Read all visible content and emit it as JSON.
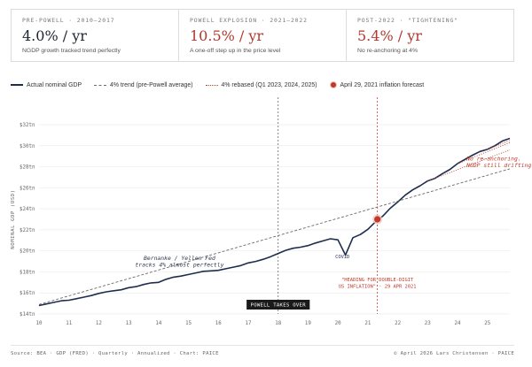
{
  "cards": [
    {
      "label": "PRE-POWELL · 2010–2017",
      "value": "4.0% / yr",
      "note": "NGDP growth tracked trend perfectly",
      "color": "#1f2530"
    },
    {
      "label": "POWELL EXPLOSION · 2021–2022",
      "value": "10.5% / yr",
      "note": "A one-off step up in the price level",
      "color": "#b03a2e"
    },
    {
      "label": "POST-2022 · \"TIGHTENING\"",
      "value": "5.4% / yr",
      "note": "No re-anchoring at 4%",
      "color": "#b03a2e"
    }
  ],
  "legend": {
    "actual": "Actual nominal GDP",
    "trend": "4% trend (pre-Powell average)",
    "rebased": "4% rebased (Q1 2023, 2024, 2025)",
    "forecast": "April 29, 2021 inflation forecast"
  },
  "footer": {
    "left": "Source: BEA · GDP (FRED) · Quarterly · Annualized · Chart: PAICE",
    "right": "© April 2026 Lars Christensen · PAICE"
  },
  "chart_data": {
    "type": "line",
    "title": "",
    "xlabel": "",
    "ylabel": "NOMINAL GDP (USD)",
    "xlim": [
      2010,
      2025.75
    ],
    "ylim": [
      14,
      32
    ],
    "x_ticks": [
      10,
      11,
      12,
      13,
      14,
      15,
      16,
      17,
      18,
      19,
      20,
      21,
      22,
      23,
      24,
      25
    ],
    "y_ticks": [
      {
        "value": 14,
        "label": "$14tn"
      },
      {
        "value": 16,
        "label": "$16tn"
      },
      {
        "value": 18,
        "label": "$18tn"
      },
      {
        "value": 20,
        "label": "$20tn"
      },
      {
        "value": 22,
        "label": "$22tn"
      },
      {
        "value": 24,
        "label": "$24tn"
      },
      {
        "value": 26,
        "label": "$26tn"
      },
      {
        "value": 28,
        "label": "$28tn"
      },
      {
        "value": 30,
        "label": "$30tn"
      },
      {
        "value": 32,
        "label": "$32tn"
      }
    ],
    "series": [
      {
        "name": "Actual nominal GDP",
        "color": "#1f2d4d",
        "style": "solid",
        "x": [
          2010.0,
          2010.25,
          2010.5,
          2010.75,
          2011.0,
          2011.25,
          2011.5,
          2011.75,
          2012.0,
          2012.25,
          2012.5,
          2012.75,
          2013.0,
          2013.25,
          2013.5,
          2013.75,
          2014.0,
          2014.25,
          2014.5,
          2014.75,
          2015.0,
          2015.25,
          2015.5,
          2015.75,
          2016.0,
          2016.25,
          2016.5,
          2016.75,
          2017.0,
          2017.25,
          2017.5,
          2017.75,
          2018.0,
          2018.25,
          2018.5,
          2018.75,
          2019.0,
          2019.25,
          2019.5,
          2019.75,
          2020.0,
          2020.25,
          2020.5,
          2020.75,
          2021.0,
          2021.25,
          2021.5,
          2021.75,
          2022.0,
          2022.25,
          2022.5,
          2022.75,
          2023.0,
          2023.25,
          2023.5,
          2023.75,
          2024.0,
          2024.25,
          2024.5,
          2024.75,
          2025.0,
          2025.25,
          2025.5,
          2025.75
        ],
        "values": [
          14.8,
          14.95,
          15.1,
          15.25,
          15.3,
          15.45,
          15.6,
          15.75,
          15.95,
          16.1,
          16.2,
          16.3,
          16.5,
          16.6,
          16.8,
          16.95,
          17.0,
          17.3,
          17.5,
          17.6,
          17.75,
          17.9,
          18.05,
          18.1,
          18.15,
          18.3,
          18.45,
          18.6,
          18.85,
          19.0,
          19.2,
          19.45,
          19.75,
          20.05,
          20.25,
          20.35,
          20.5,
          20.75,
          20.95,
          21.15,
          21.05,
          19.6,
          21.25,
          21.55,
          22.05,
          22.75,
          23.3,
          24.05,
          24.65,
          25.3,
          25.8,
          26.2,
          26.65,
          26.9,
          27.35,
          27.75,
          28.3,
          28.7,
          29.1,
          29.45,
          29.65,
          30.0,
          30.45,
          30.7
        ]
      },
      {
        "name": "4% trend (pre-Powell average)",
        "color": "#6a6a6a",
        "style": "dashed",
        "x": [
          2010.0,
          2025.75
        ],
        "values": [
          14.9,
          27.8
        ]
      },
      {
        "name": "4% rebased (Q1 2023, 2024, 2025)",
        "color": "#c0392b",
        "style": "dotted",
        "lines": [
          {
            "x": [
              2023.0,
              2025.75
            ],
            "values": [
              26.65,
              29.6
            ]
          },
          {
            "x": [
              2024.0,
              2025.75
            ],
            "values": [
              28.3,
              30.3
            ]
          },
          {
            "x": [
              2025.0,
              2025.75
            ],
            "values": [
              29.65,
              30.5
            ]
          }
        ]
      }
    ],
    "markers": [
      {
        "name": "April 29, 2021 inflation forecast",
        "x": 2021.32,
        "y": 23.0,
        "color": "#c0392b"
      }
    ],
    "vlines": [
      {
        "x": 2018.0,
        "color": "#666666",
        "label": "POWELL TAKES OVER"
      },
      {
        "x": 2021.32,
        "color": "#c0392b",
        "label": ""
      }
    ],
    "annotations": [
      {
        "lines": [
          "Bernanke / Yellen Fed",
          "tracks 4% almost perfectly"
        ],
        "x": 2014.7,
        "y": 19.15,
        "color": "#2a3550",
        "style": "serif-italic",
        "anchor": "middle"
      },
      {
        "lines": [
          "COVID"
        ],
        "x": 2020.15,
        "y": 19.3,
        "color": "#2a3550",
        "style": "mono",
        "anchor": "middle"
      },
      {
        "lines": [
          "\"HEADING FOR DOUBLE-DIGIT",
          "US INFLATION\" · 29 APR 2021"
        ],
        "x": 2021.32,
        "y": 17.1,
        "color": "#c0392b",
        "style": "mono",
        "anchor": "middle"
      },
      {
        "lines": [
          "No re-anchoring.",
          "NGDP still drifting up."
        ],
        "x": 2024.3,
        "y": 28.6,
        "color": "#c0392b",
        "style": "serif-italic",
        "anchor": "start"
      }
    ]
  }
}
